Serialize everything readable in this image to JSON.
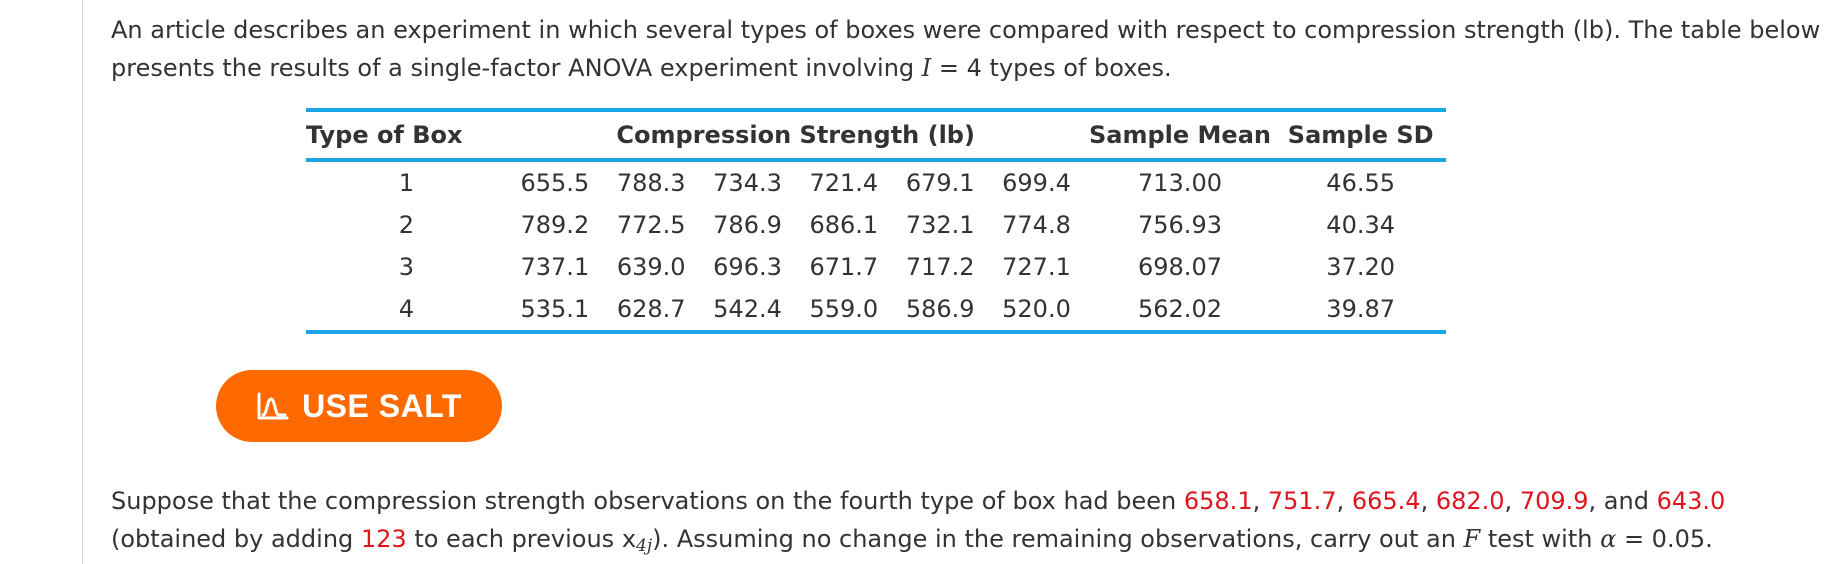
{
  "intro": {
    "text_before": "An article describes an experiment in which several types of boxes were compared with respect to compression strength (lb). The table below presents the results of a single-factor ANOVA experiment involving ",
    "var_I": "I",
    "text_after": " = 4 types of boxes."
  },
  "table": {
    "headers": {
      "type": "Type of Box",
      "compression": "Compression Strength (lb)",
      "mean": "Sample Mean",
      "sd": "Sample SD"
    },
    "rows": [
      {
        "type": "1",
        "obs": [
          "655.5",
          "788.3",
          "734.3",
          "721.4",
          "679.1",
          "699.4"
        ],
        "mean": "713.00",
        "sd": "46.55"
      },
      {
        "type": "2",
        "obs": [
          "789.2",
          "772.5",
          "786.9",
          "686.1",
          "732.1",
          "774.8"
        ],
        "mean": "756.93",
        "sd": "40.34"
      },
      {
        "type": "3",
        "obs": [
          "737.1",
          "639.0",
          "696.3",
          "671.7",
          "717.2",
          "727.1"
        ],
        "mean": "698.07",
        "sd": "37.20"
      },
      {
        "type": "4",
        "obs": [
          "535.1",
          "628.7",
          "542.4",
          "559.0",
          "586.9",
          "520.0"
        ],
        "mean": "562.02",
        "sd": "39.87"
      }
    ]
  },
  "salt_button": {
    "label": "USE SALT",
    "icon": "salt-chart-icon",
    "color": "#ff6a00"
  },
  "question": {
    "t1": "Suppose that the compression strength observations on the fourth type of box had been ",
    "v1": "658.1",
    "c1": ", ",
    "v2": "751.7",
    "c2": ", ",
    "v3": "665.4",
    "c3": ", ",
    "v4": "682.0",
    "c4": ", ",
    "v5": "709.9",
    "c5": ", and ",
    "v6": "643.0",
    "t2": " (obtained by adding ",
    "add": "123",
    "t3": " to each previous ",
    "x_var": "x",
    "x_sub": "4j",
    "t4": "). Assuming no change in the remaining observations, carry out an ",
    "f_var": "F",
    "t5": " test with ",
    "alpha": "α",
    "t6": " = 0.05."
  },
  "colors": {
    "accent_blue": "#1aa6e5",
    "highlight_red": "#e0141e"
  }
}
